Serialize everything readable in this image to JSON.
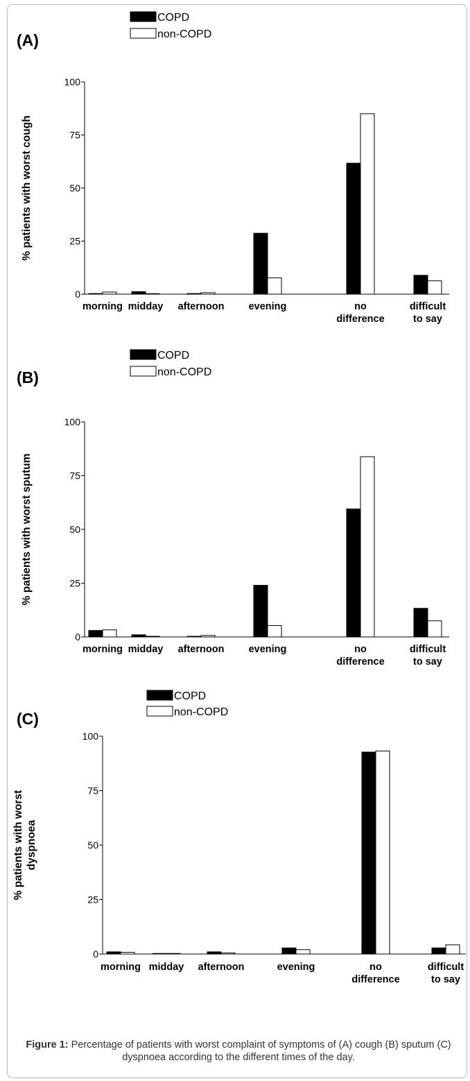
{
  "chart_data": [
    {
      "type": "bar",
      "panel_label": "(A)",
      "ylabel": "% patients with worst cough",
      "ylim": [
        0,
        100
      ],
      "yticks": [
        0,
        25,
        50,
        75,
        100
      ],
      "categories": [
        [
          "morning"
        ],
        [
          "midday"
        ],
        [
          "afternoon"
        ],
        [
          "evening"
        ],
        [
          "no",
          "difference"
        ],
        [
          "difficult",
          "to say"
        ]
      ],
      "series": [
        {
          "name": "COPD",
          "values": [
            0.3,
            1.2,
            0.3,
            28.7,
            61.7,
            8.9
          ]
        },
        {
          "name": "non-COPD",
          "values": [
            1.0,
            0.2,
            0.7,
            7.7,
            85.0,
            6.3
          ]
        }
      ],
      "legend_position": "top"
    },
    {
      "type": "bar",
      "panel_label": "(B)",
      "ylabel": "% patients with worst sputum",
      "ylim": [
        0,
        100
      ],
      "yticks": [
        0,
        25,
        50,
        75,
        100
      ],
      "categories": [
        [
          "morning"
        ],
        [
          "midday"
        ],
        [
          "afternoon"
        ],
        [
          "evening"
        ],
        [
          "no",
          "difference"
        ],
        [
          "difficult",
          "to say"
        ]
      ],
      "series": [
        {
          "name": "COPD",
          "values": [
            3.0,
            1.0,
            0.3,
            24.0,
            59.5,
            13.3
          ]
        },
        {
          "name": "non-COPD",
          "values": [
            3.3,
            0.3,
            0.7,
            5.3,
            83.8,
            7.5
          ]
        }
      ],
      "legend_position": "top"
    },
    {
      "type": "bar",
      "panel_label": "(C)",
      "ylabel": "% patients with worst dyspnoea",
      "ylabel_lines": [
        "% patients with worst",
        "dyspnoea"
      ],
      "ylim": [
        0,
        100
      ],
      "yticks": [
        0,
        25,
        50,
        75,
        100
      ],
      "categories": [
        [
          "morning"
        ],
        [
          "midday"
        ],
        [
          "afternoon"
        ],
        [
          "evening"
        ],
        [
          "no",
          "difference"
        ],
        [
          "difficult",
          "to say"
        ]
      ],
      "series": [
        {
          "name": "COPD",
          "values": [
            1.0,
            0.2,
            1.0,
            2.8,
            92.7,
            2.8
          ]
        },
        {
          "name": "non-COPD",
          "values": [
            0.8,
            0.2,
            0.5,
            2.0,
            93.2,
            4.2
          ]
        }
      ],
      "legend_position": "top"
    }
  ],
  "caption": {
    "label": "Figure 1:",
    "text": " Percentage of patients with worst complaint of symptoms of (A) cough (B) sputum (C) dyspnoea according to the different times of the day."
  },
  "colors": {
    "copd": "#000000",
    "non_copd": "#ffffff"
  }
}
